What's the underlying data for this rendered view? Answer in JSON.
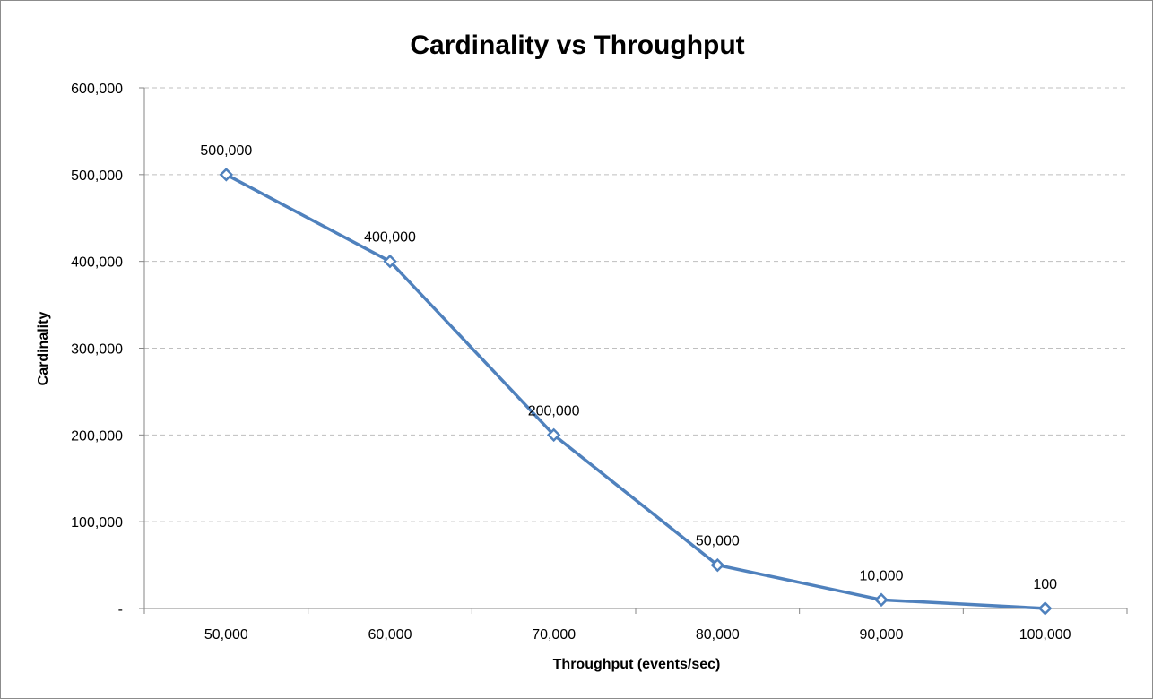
{
  "chart_data": {
    "type": "line",
    "title": "Cardinality vs Throughput",
    "xlabel": "Throughput (events/sec)",
    "ylabel": "Cardinality",
    "x": [
      50000,
      60000,
      70000,
      80000,
      90000,
      100000
    ],
    "x_tick_labels": [
      "50,000",
      "60,000",
      "70,000",
      "80,000",
      "90,000",
      "100,000"
    ],
    "series": [
      {
        "values": [
          500000,
          400000,
          200000,
          50000,
          10000,
          100
        ],
        "data_labels": [
          "500,000",
          "400,000",
          "200,000",
          "50,000",
          "10,000",
          "100"
        ],
        "color": "#4f81bd",
        "marker": "diamond-open"
      }
    ],
    "y_ticks": [
      0,
      100000,
      200000,
      300000,
      400000,
      500000,
      600000
    ],
    "y_tick_labels": [
      "-",
      "100,000",
      "200,000",
      "300,000",
      "400,000",
      "500,000",
      "600,000"
    ],
    "ylim": [
      0,
      600000
    ],
    "grid": "horizontal-dashed",
    "legend": "none",
    "colors": {
      "series": "#4f81bd",
      "grid": "#bfbfbf",
      "axis": "#868686"
    }
  }
}
